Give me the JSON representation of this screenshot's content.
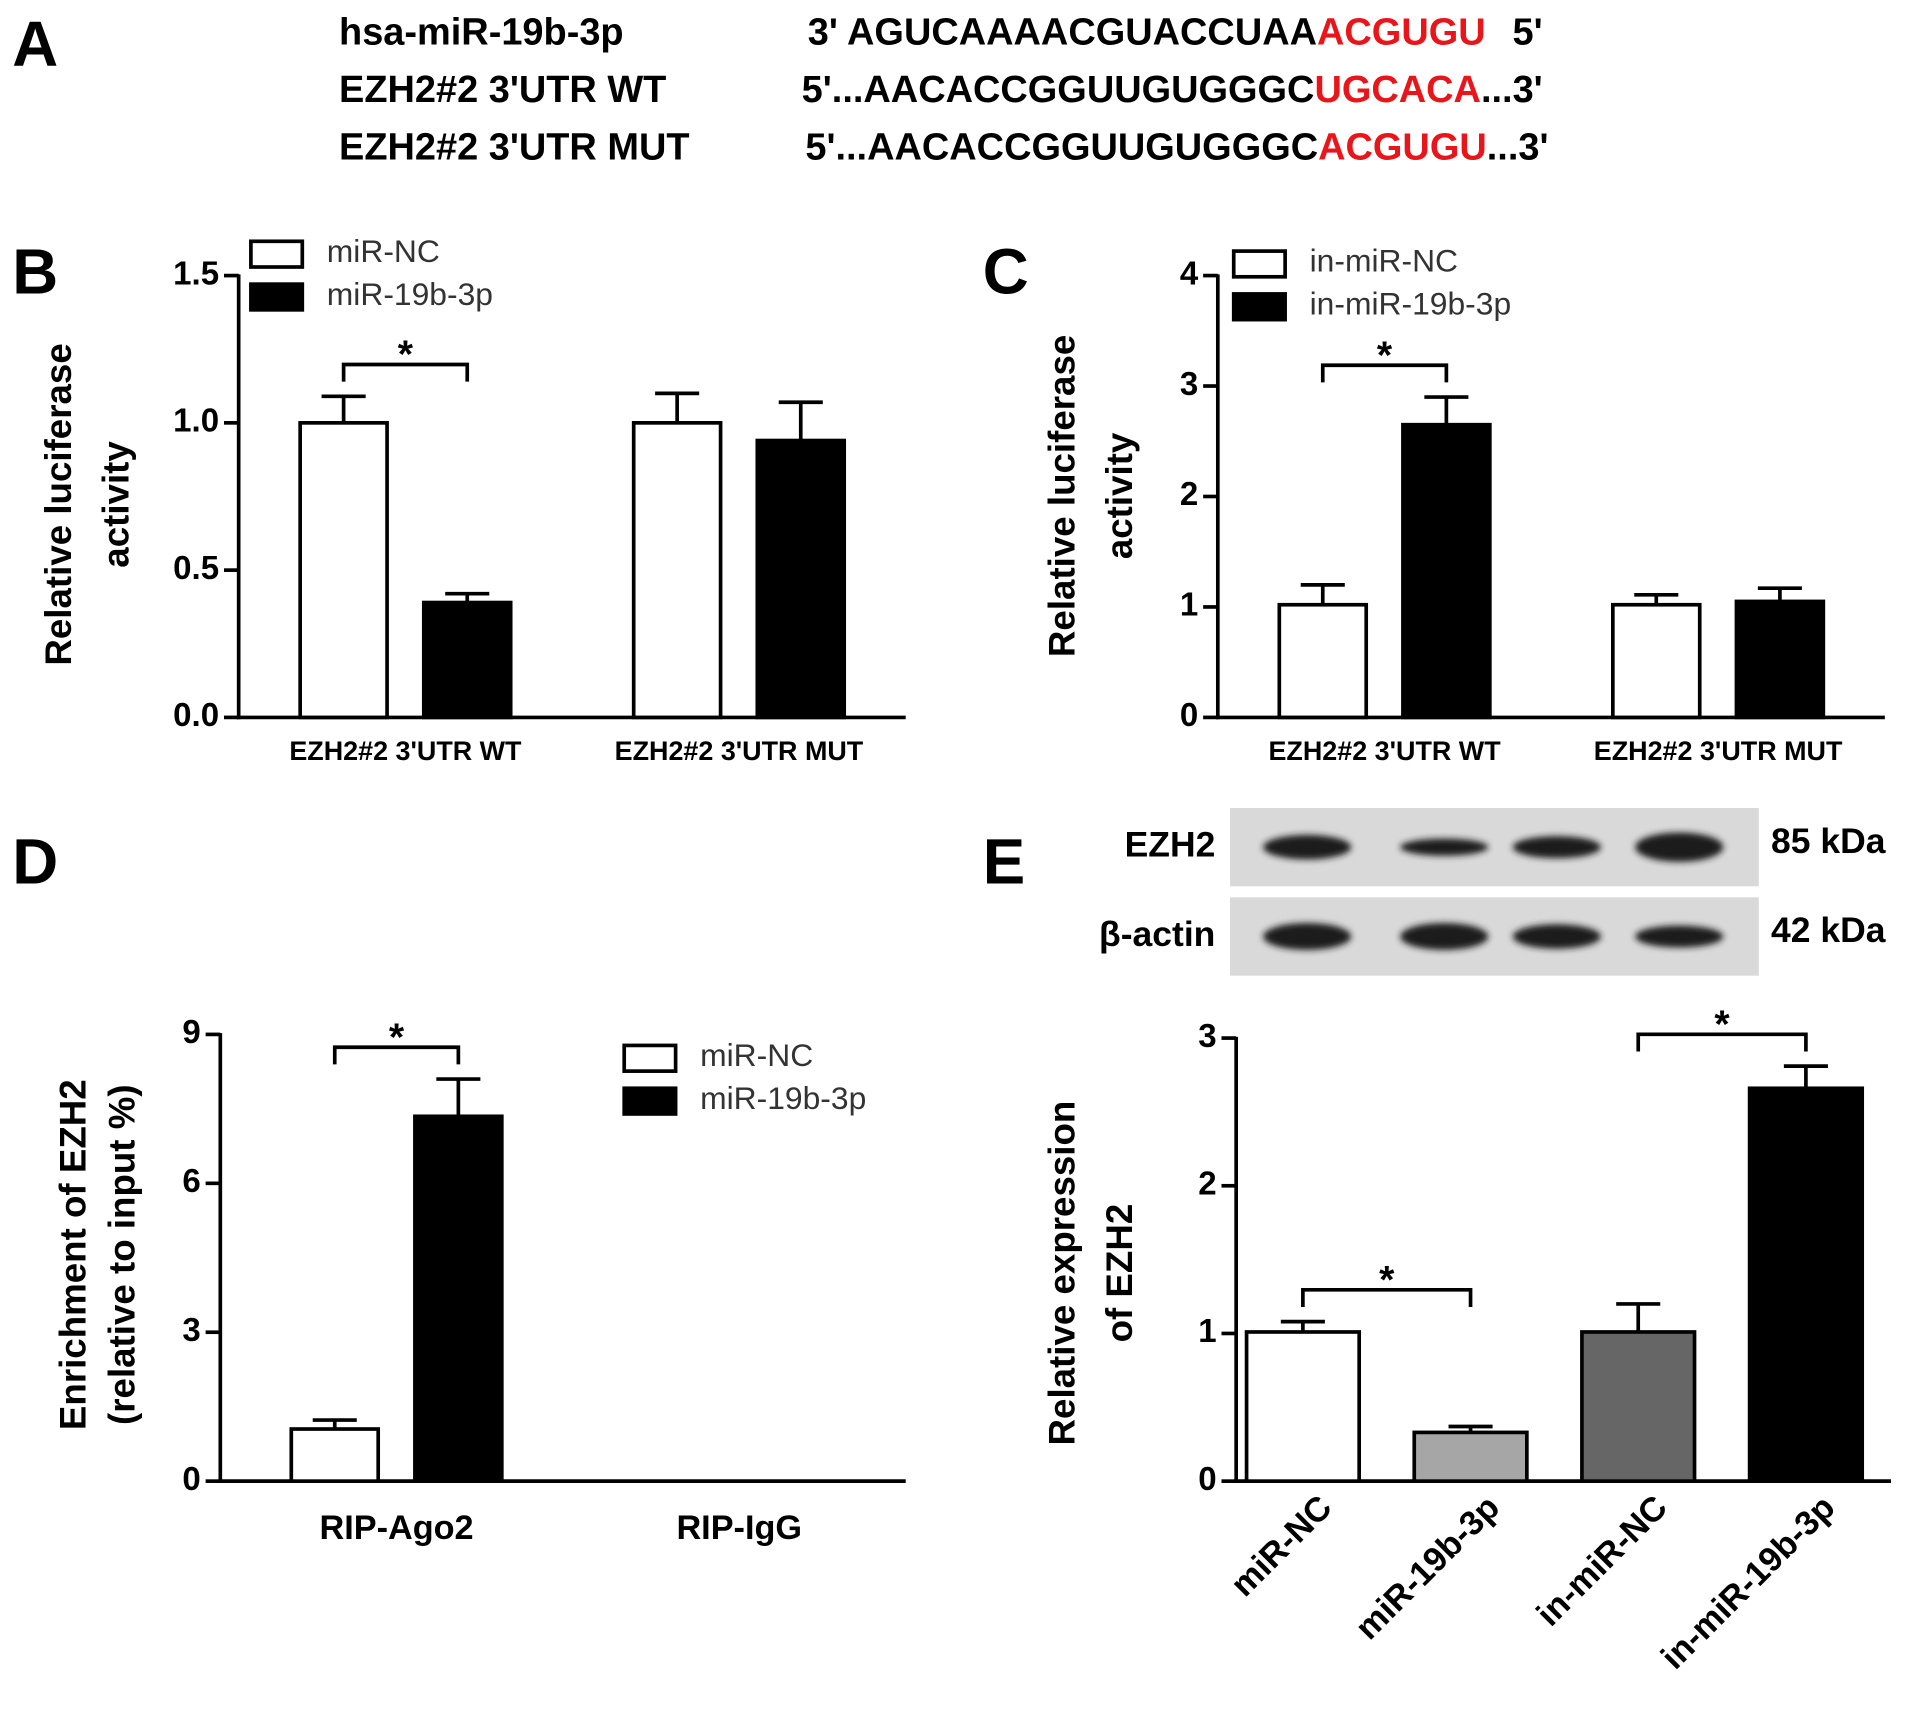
{
  "panel_labels": [
    "A",
    "B",
    "C",
    "D",
    "E"
  ],
  "sequences": [
    {
      "name": "hsa-miR-19b-3p",
      "prefix": "3' AGUCAAAACGUACCUAA",
      "highlight": "ACGUGU",
      "suffix": "5'"
    },
    {
      "name": "EZH2#2 3'UTR WT",
      "prefix": "5'...AACACCGGUUGUGGGC",
      "highlight": "UGCACA",
      "suffix": "...3'"
    },
    {
      "name": "EZH2#2 3'UTR MUT",
      "prefix": "5'...AACACCGGUUGUGGGC",
      "highlight": "ACGUGU",
      "suffix": "...3'"
    }
  ],
  "chart_data": [
    {
      "type": "bar",
      "ylabel": [
        "Relative  luciferase",
        "activity"
      ],
      "categories": [
        "EZH2#2 3'UTR WT",
        "EZH2#2 3'UTR MUT"
      ],
      "series": [
        {
          "name": "miR-NC",
          "color": "#ffffff",
          "values": [
            1.0,
            1.0
          ],
          "errors": [
            0.09,
            0.1
          ]
        },
        {
          "name": "miR-19b-3p",
          "color": "#000000",
          "values": [
            0.39,
            0.94
          ],
          "errors": [
            0.03,
            0.13
          ]
        }
      ],
      "ylim": [
        0,
        1.5
      ],
      "yticks": [
        {
          "value": 0,
          "label": "0.0"
        },
        {
          "value": 0.5,
          "label": "0.5"
        },
        {
          "value": 1,
          "label": "1.0"
        },
        {
          "value": 1.5,
          "label": "1.5"
        }
      ],
      "significance": [
        {
          "category": 0,
          "label": "*"
        }
      ],
      "legend": "upper left"
    },
    {
      "type": "bar",
      "ylabel": [
        "Relative  luciferase",
        "activity"
      ],
      "categories": [
        "EZH2#2 3'UTR WT",
        "EZH2#2 3'UTR MUT"
      ],
      "series": [
        {
          "name": "in-miR-NC",
          "color": "#ffffff",
          "values": [
            1.02,
            1.02
          ],
          "errors": [
            0.18,
            0.09
          ]
        },
        {
          "name": "in-miR-19b-3p",
          "color": "#000000",
          "values": [
            2.65,
            1.05
          ],
          "errors": [
            0.25,
            0.12
          ]
        }
      ],
      "ylim": [
        0,
        4
      ],
      "yticks": [
        0,
        1,
        2,
        3,
        4
      ],
      "significance": [
        {
          "category": 0,
          "label": "*"
        }
      ],
      "legend": "upper left"
    },
    {
      "type": "bar",
      "ylabel": [
        "Enrichment of EZH2",
        "(relative to input %)"
      ],
      "categories": [
        "RIP-Ago2",
        "RIP-IgG"
      ],
      "series": [
        {
          "name": "miR-NC",
          "color": "#ffffff",
          "values": [
            1.05,
            null
          ],
          "errors": [
            0.18,
            null
          ]
        },
        {
          "name": "miR-19b-3p",
          "color": "#000000",
          "values": [
            7.35,
            null
          ],
          "errors": [
            0.75,
            null
          ]
        }
      ],
      "ylim": [
        0,
        9
      ],
      "yticks": [
        0,
        3,
        6,
        9
      ],
      "significance": [
        {
          "category": 0,
          "label": "*"
        }
      ],
      "legend": "upper right"
    },
    {
      "type": "bar",
      "ylabel": [
        "Relative expression",
        "of EZH2"
      ],
      "categories": [
        "miR-NC",
        "miR-19b-3p",
        "in-miR-NC",
        "in-miR-19b-3p"
      ],
      "values": [
        1.01,
        0.33,
        1.01,
        2.66
      ],
      "errors": [
        0.07,
        0.04,
        0.19,
        0.15
      ],
      "colors": [
        "#ffffff",
        "#a6a6a6",
        "#666666",
        "#000000"
      ],
      "ylim": [
        0,
        3
      ],
      "yticks": [
        0,
        1,
        2,
        3
      ],
      "significance": [
        {
          "between": [
            0,
            1
          ],
          "label": "*"
        },
        {
          "between": [
            2,
            3
          ],
          "label": "*"
        }
      ],
      "blot": {
        "rows": [
          {
            "label": "EZH2",
            "size": "85 kDa"
          },
          {
            "label": "β-actin",
            "size": "42 kDa"
          }
        ]
      }
    }
  ]
}
